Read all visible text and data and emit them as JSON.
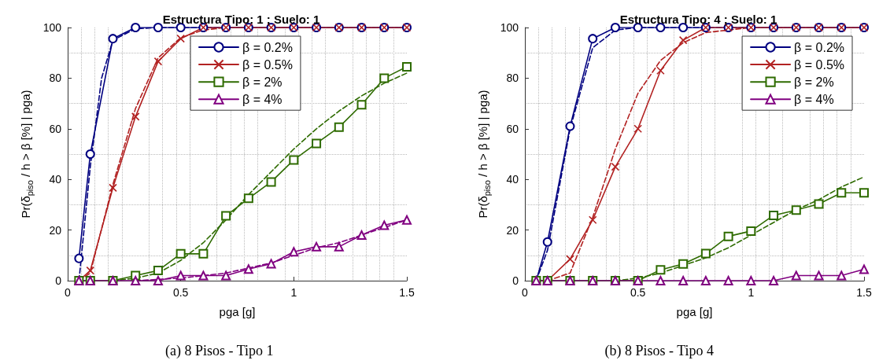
{
  "chart_data": [
    {
      "type": "line",
      "title": "Estructura Tipo: 1 ; Suelo: 1",
      "xlabel": "pga [g]",
      "ylabel": "Pr(δ$_{piso}$ / h > β [%] | pga)",
      "annotations": [
        "(a) 8 Pisos - Tipo 1"
      ],
      "x": [
        0.05,
        0.1,
        0.2,
        0.3,
        0.4,
        0.5,
        0.6,
        0.7,
        0.8,
        0.9,
        1.0,
        1.1,
        1.2,
        1.3,
        1.4,
        1.5
      ],
      "xlim": [
        0,
        1.5
      ],
      "xticks": [
        0,
        0.5,
        1,
        1.5
      ],
      "ylim": [
        0,
        100
      ],
      "yticks": [
        0,
        20,
        40,
        60,
        80,
        100
      ],
      "grid": true,
      "legend": "top",
      "series": [
        {
          "name": "β = 0.2%",
          "color": "#000080",
          "marker": "circle",
          "line_style": "solid",
          "values": [
            8.8,
            50,
            95.6,
            100,
            100,
            100,
            100,
            100,
            100,
            100,
            100,
            100,
            100,
            100,
            100,
            100
          ]
        },
        {
          "name": "β = 0.5%",
          "color": "#b22222",
          "marker": "cross",
          "line_style": "solid",
          "values": [
            0,
            4,
            36.7,
            64.8,
            86.6,
            95.6,
            100,
            100,
            100,
            100,
            100,
            100,
            100,
            100,
            100,
            100
          ]
        },
        {
          "name": "β = 2%",
          "color": "#2e6b00",
          "marker": "square",
          "line_style": "solid",
          "values": [
            0,
            0,
            0,
            2,
            4,
            10.6,
            10.6,
            25.6,
            32.5,
            39,
            47.7,
            54.2,
            60.6,
            69.5,
            80,
            84.5
          ]
        },
        {
          "name": "β = 4%",
          "color": "#800080",
          "marker": "triangle",
          "line_style": "solid",
          "values": [
            0,
            0,
            0,
            0,
            0,
            2,
            2,
            2,
            4.6,
            6.7,
            11.4,
            13.4,
            13.4,
            18,
            21.9,
            24
          ]
        },
        {
          "color": "#000080",
          "marker": "none",
          "line_style": "dashed",
          "x": [
            0.05,
            0.1,
            0.15,
            0.2,
            0.3,
            0.4,
            1.5
          ],
          "values": [
            0,
            45,
            80,
            95,
            99.5,
            100,
            100
          ]
        },
        {
          "color": "#b22222",
          "marker": "none",
          "line_style": "dashed",
          "x": [
            0.05,
            0.1,
            0.2,
            0.3,
            0.4,
            0.5,
            0.6,
            0.7,
            1.5
          ],
          "values": [
            0,
            3,
            38,
            68,
            88,
            96,
            99,
            100,
            100
          ]
        },
        {
          "color": "#2e6b00",
          "marker": "none",
          "line_style": "dashed",
          "x": [
            0.2,
            0.3,
            0.4,
            0.5,
            0.6,
            0.7,
            0.8,
            0.9,
            1.0,
            1.1,
            1.2,
            1.3,
            1.4,
            1.5
          ],
          "values": [
            0,
            1,
            3,
            8,
            15,
            24,
            34,
            43,
            52,
            60,
            67,
            73,
            78,
            82
          ]
        },
        {
          "color": "#800080",
          "marker": "none",
          "line_style": "dashed",
          "x": [
            0.3,
            0.5,
            0.7,
            0.8,
            0.9,
            1.0,
            1.1,
            1.2,
            1.3,
            1.4,
            1.5
          ],
          "values": [
            0,
            1,
            3,
            5,
            7,
            10,
            13,
            15,
            18,
            21,
            24
          ]
        }
      ]
    },
    {
      "type": "line",
      "title": "Estructura Tipo: 4 ; Suelo: 1",
      "xlabel": "pga [g]",
      "ylabel": "Pr(δ$_{piso}$ / h > β [%] | pga)",
      "annotations": [
        "(b) 8 Pisos - Tipo 4"
      ],
      "x": [
        0.05,
        0.1,
        0.2,
        0.3,
        0.4,
        0.5,
        0.6,
        0.7,
        0.8,
        0.9,
        1.0,
        1.1,
        1.2,
        1.3,
        1.4,
        1.5
      ],
      "xlim": [
        0,
        1.5
      ],
      "xticks": [
        0,
        0.5,
        1,
        1.5
      ],
      "ylim": [
        0,
        100
      ],
      "yticks": [
        0,
        20,
        40,
        60,
        80,
        100
      ],
      "grid": true,
      "legend": "top right",
      "series": [
        {
          "name": "β = 0.2%",
          "color": "#000080",
          "marker": "circle",
          "line_style": "solid",
          "values": [
            0,
            15.3,
            61,
            95.6,
            100,
            100,
            100,
            100,
            100,
            100,
            100,
            100,
            100,
            100,
            100,
            100
          ]
        },
        {
          "name": "β = 0.5%",
          "color": "#b22222",
          "marker": "cross",
          "line_style": "solid",
          "values": [
            0,
            0,
            8.5,
            24,
            45,
            60,
            83,
            95,
            100,
            100,
            100,
            100,
            100,
            100,
            100,
            100
          ]
        },
        {
          "name": "β = 2%",
          "color": "#2e6b00",
          "marker": "square",
          "line_style": "solid",
          "values": [
            0,
            0,
            0,
            0,
            0,
            0,
            4.3,
            6.6,
            10.7,
            17.5,
            19.6,
            25.8,
            27.9,
            30.3,
            34.7,
            34.7
          ]
        },
        {
          "name": "β = 4%",
          "color": "#800080",
          "marker": "triangle",
          "line_style": "solid",
          "values": [
            0,
            0,
            0,
            0,
            0,
            0,
            0,
            0,
            0,
            0,
            0,
            0,
            2,
            2,
            2,
            4.5
          ]
        },
        {
          "color": "#000080",
          "marker": "none",
          "line_style": "dashed",
          "x": [
            0.05,
            0.1,
            0.2,
            0.3,
            0.4,
            0.5,
            1.5
          ],
          "values": [
            0,
            12,
            60,
            92,
            99,
            100,
            100
          ]
        },
        {
          "color": "#b22222",
          "marker": "none",
          "line_style": "dashed",
          "x": [
            0.1,
            0.2,
            0.3,
            0.4,
            0.5,
            0.6,
            0.7,
            0.8,
            0.9,
            1.0,
            1.5
          ],
          "values": [
            0,
            3,
            25,
            52,
            74,
            87,
            94,
            98,
            99,
            100,
            100
          ]
        },
        {
          "color": "#2e6b00",
          "marker": "none",
          "line_style": "dashed",
          "x": [
            0.4,
            0.5,
            0.6,
            0.7,
            0.8,
            0.9,
            1.0,
            1.1,
            1.2,
            1.3,
            1.4,
            1.5
          ],
          "values": [
            0,
            1,
            3,
            6,
            9,
            13,
            18,
            23,
            28,
            32,
            37,
            41
          ]
        }
      ]
    }
  ]
}
